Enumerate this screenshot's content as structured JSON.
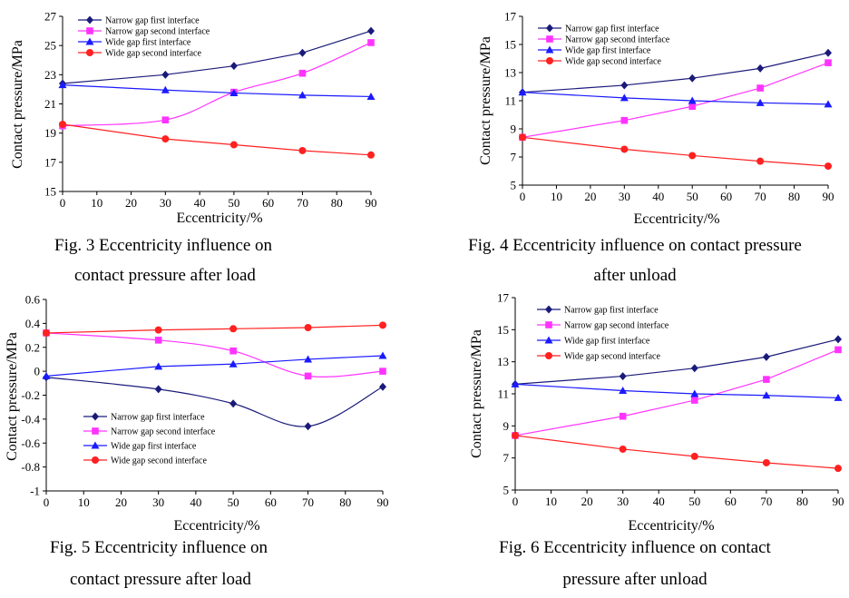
{
  "chart_data": [
    {
      "type": "line",
      "x": [
        0,
        30,
        50,
        70,
        90
      ],
      "xlim": [
        0,
        90
      ],
      "xticks": [
        0,
        10,
        20,
        30,
        40,
        50,
        60,
        70,
        80,
        90
      ],
      "ylim": [
        15,
        27
      ],
      "yticks": [
        15,
        17,
        19,
        21,
        23,
        25,
        27
      ],
      "xlabel": "Eccentricity/%",
      "ylabel": "Contact pressure/MPa",
      "grid": false,
      "legend_position": "top-left",
      "caption_lines": [
        "Fig. 3 Eccentricity influence on",
        "contact pressure after load"
      ],
      "series": [
        {
          "name": "Narrow gap first interface",
          "values": [
            22.4,
            23.0,
            23.6,
            24.5,
            26.0
          ],
          "color": "#1a1a7a",
          "marker": "diamond"
        },
        {
          "name": "Narrow gap second interface",
          "values": [
            19.5,
            19.9,
            21.8,
            23.1,
            25.2
          ],
          "color": "#ff33ff",
          "marker": "square"
        },
        {
          "name": "Wide gap first interface",
          "values": [
            22.3,
            21.95,
            21.75,
            21.6,
            21.5
          ],
          "color": "#1a1aff",
          "marker": "triangle"
        },
        {
          "name": "Wide gap second interface",
          "values": [
            19.6,
            18.6,
            18.2,
            17.8,
            17.5
          ],
          "color": "#ff2020",
          "marker": "circle"
        }
      ]
    },
    {
      "type": "line",
      "x": [
        0,
        30,
        50,
        70,
        90
      ],
      "xlim": [
        0,
        90
      ],
      "xticks": [
        0,
        10,
        20,
        30,
        40,
        50,
        60,
        70,
        80,
        90
      ],
      "ylim": [
        5,
        17
      ],
      "yticks": [
        5,
        7,
        9,
        11,
        13,
        15,
        17
      ],
      "xlabel": "Eccentricity/%",
      "ylabel": "Contact pressure/MPa",
      "grid": false,
      "legend_position": "top-left",
      "caption_lines": [
        "Fig. 4 Eccentricity influence on contact pressure",
        "after unload"
      ],
      "series": [
        {
          "name": "Narrow gap first interface",
          "values": [
            11.6,
            12.1,
            12.6,
            13.3,
            14.4
          ],
          "color": "#1a1a7a",
          "marker": "diamond"
        },
        {
          "name": "Narrow gap second interface",
          "values": [
            8.4,
            9.6,
            10.6,
            11.9,
            13.7
          ],
          "color": "#ff33ff",
          "marker": "square"
        },
        {
          "name": "Wide gap first interface",
          "values": [
            11.6,
            11.2,
            11.0,
            10.85,
            10.75
          ],
          "color": "#1a1aff",
          "marker": "triangle"
        },
        {
          "name": "Wide gap second interface",
          "values": [
            8.4,
            7.55,
            7.1,
            6.7,
            6.35
          ],
          "color": "#ff2020",
          "marker": "circle"
        }
      ]
    },
    {
      "type": "line",
      "x": [
        0,
        30,
        50,
        70,
        90
      ],
      "xlim": [
        0,
        90
      ],
      "xticks": [
        0,
        10,
        20,
        30,
        40,
        50,
        60,
        70,
        80,
        90
      ],
      "ylim": [
        -1,
        0.6
      ],
      "yticks": [
        -1,
        -0.8,
        -0.6,
        -0.4,
        -0.2,
        0,
        0.2,
        0.4,
        0.6
      ],
      "ytick_labels": [
        "-1",
        "-0.8",
        "-0.6",
        "-0.4",
        "-0.2",
        "0",
        "0.2",
        "0.4",
        "0.6"
      ],
      "xlabel": "Eccentricity/%",
      "ylabel": "Contact pressure/MPa",
      "grid": false,
      "legend_position": "bottom-left",
      "caption_lines": [
        "Fig. 5 Eccentricity influence on",
        "contact pressure after load"
      ],
      "series": [
        {
          "name": "Narrow gap first interface",
          "values": [
            -0.05,
            -0.15,
            -0.27,
            -0.46,
            -0.13
          ],
          "color": "#1a1a7a",
          "marker": "diamond"
        },
        {
          "name": "Narrow gap second interface",
          "values": [
            0.32,
            0.26,
            0.17,
            -0.04,
            0.0
          ],
          "color": "#ff33ff",
          "marker": "square"
        },
        {
          "name": "Wide gap first interface",
          "values": [
            -0.04,
            0.04,
            0.06,
            0.1,
            0.13
          ],
          "color": "#1a1aff",
          "marker": "triangle"
        },
        {
          "name": "Wide gap second interface",
          "values": [
            0.32,
            0.345,
            0.355,
            0.365,
            0.385
          ],
          "color": "#ff2020",
          "marker": "circle"
        }
      ]
    },
    {
      "type": "line",
      "x": [
        0,
        30,
        50,
        70,
        90
      ],
      "xlim": [
        0,
        90
      ],
      "xticks": [
        0,
        10,
        20,
        30,
        40,
        50,
        60,
        70,
        80,
        90
      ],
      "ylim": [
        5,
        17
      ],
      "yticks": [
        5,
        7,
        9,
        11,
        13,
        15,
        17
      ],
      "xlabel": "Eccentricity/%",
      "ylabel": "Contact pressure/MPa",
      "grid": false,
      "legend_position": "top-left",
      "caption_lines": [
        "Fig. 6 Eccentricity influence on contact",
        "pressure after unload"
      ],
      "series": [
        {
          "name": "Narrow gap first interface",
          "values": [
            11.6,
            12.1,
            12.6,
            13.3,
            14.4
          ],
          "color": "#1a1a7a",
          "marker": "diamond"
        },
        {
          "name": "Narrow gap second interface",
          "values": [
            8.4,
            9.6,
            10.6,
            11.9,
            13.75
          ],
          "color": "#ff33ff",
          "marker": "square"
        },
        {
          "name": "Wide gap first interface",
          "values": [
            11.6,
            11.2,
            11.0,
            10.9,
            10.75
          ],
          "color": "#1a1aff",
          "marker": "triangle"
        },
        {
          "name": "Wide gap second interface",
          "values": [
            8.4,
            7.55,
            7.1,
            6.7,
            6.35
          ],
          "color": "#ff2020",
          "marker": "circle"
        }
      ]
    }
  ]
}
